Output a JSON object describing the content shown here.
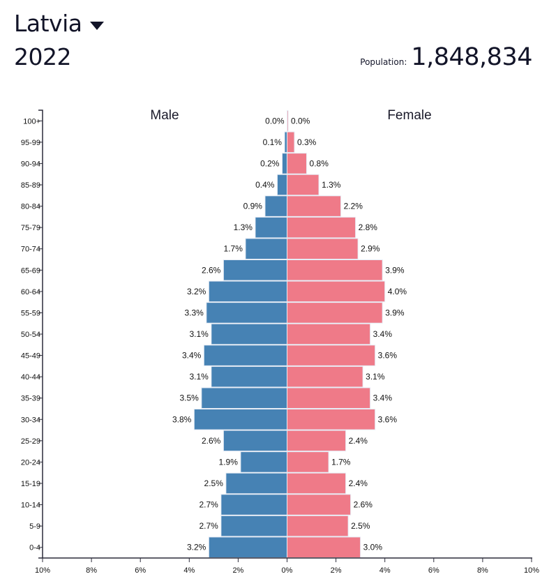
{
  "header": {
    "country": "Latvia",
    "year": "2022",
    "population_label": "Population:",
    "population_value": "1,848,834"
  },
  "colors": {
    "male": "#4682b4",
    "female": "#ef7a88",
    "bar_stroke": "#e6ecf5",
    "axis": "#2b2b3a"
  },
  "chart_data": {
    "type": "bar",
    "orientation": "horizontal-population-pyramid",
    "series_titles": {
      "male": "Male",
      "female": "Female"
    },
    "categories": [
      "100+",
      "95-99",
      "90-94",
      "85-89",
      "80-84",
      "75-79",
      "70-74",
      "65-69",
      "60-64",
      "55-59",
      "50-54",
      "45-49",
      "40-44",
      "35-39",
      "30-34",
      "25-29",
      "20-24",
      "15-19",
      "10-14",
      "5-9",
      "0-4"
    ],
    "series": [
      {
        "name": "Male",
        "values": [
          0.0,
          0.1,
          0.2,
          0.4,
          0.9,
          1.3,
          1.7,
          2.6,
          3.2,
          3.3,
          3.1,
          3.4,
          3.1,
          3.5,
          3.8,
          2.6,
          1.9,
          2.5,
          2.7,
          2.7,
          3.2
        ],
        "labels": [
          "0.0%",
          "0.1%",
          "0.2%",
          "0.4%",
          "0.9%",
          "1.3%",
          "1.7%",
          "2.6%",
          "3.2%",
          "3.3%",
          "3.1%",
          "3.4%",
          "3.1%",
          "3.5%",
          "3.8%",
          "2.6%",
          "1.9%",
          "2.5%",
          "2.7%",
          "2.7%",
          "3.2%"
        ]
      },
      {
        "name": "Female",
        "values": [
          0.0,
          0.3,
          0.8,
          1.3,
          2.2,
          2.8,
          2.9,
          3.9,
          4.0,
          3.9,
          3.4,
          3.6,
          3.1,
          3.4,
          3.6,
          2.4,
          1.7,
          2.4,
          2.6,
          2.5,
          3.0
        ],
        "labels": [
          "0.0%",
          "0.3%",
          "0.8%",
          "1.3%",
          "2.2%",
          "2.8%",
          "2.9%",
          "3.9%",
          "4.0%",
          "3.9%",
          "3.4%",
          "3.6%",
          "3.1%",
          "3.4%",
          "3.6%",
          "2.4%",
          "1.7%",
          "2.4%",
          "2.6%",
          "2.5%",
          "3.0%"
        ]
      }
    ],
    "x_ticks": [
      -10,
      -8,
      -6,
      -4,
      -2,
      0,
      2,
      4,
      6,
      8,
      10
    ],
    "x_tick_labels": [
      "10%",
      "8%",
      "6%",
      "4%",
      "2%",
      "0%",
      "2%",
      "4%",
      "6%",
      "8%",
      "10%"
    ],
    "xlim": [
      -10,
      10
    ],
    "xlabel": "",
    "ylabel": "",
    "grid": false
  }
}
